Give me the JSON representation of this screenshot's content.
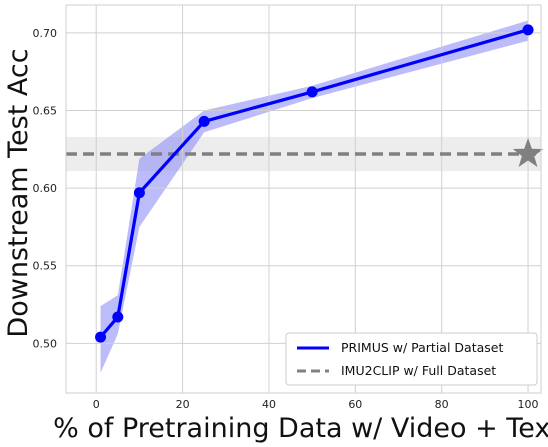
{
  "chart_data": {
    "type": "line",
    "xlabel": "% of Pretraining Data w/ Video + Text",
    "ylabel": "Downstream Test Acc",
    "xlim": [
      -7,
      103
    ],
    "ylim": [
      0.468,
      0.718
    ],
    "xticks": [
      0,
      20,
      40,
      60,
      80,
      100
    ],
    "xtick_labels": [
      "0",
      "20",
      "40",
      "60",
      "80",
      "100"
    ],
    "yticks": [
      0.5,
      0.55,
      0.6,
      0.65,
      0.7
    ],
    "ytick_labels": [
      "0.50",
      "0.55",
      "0.60",
      "0.65",
      "0.70"
    ],
    "grid": true,
    "legend_position": "bottom-right",
    "series": [
      {
        "name": "PRIMUS w/ Partial Dataset",
        "color": "#0000ff",
        "band_color": "#8f8ff7",
        "x": [
          1,
          5,
          10,
          25,
          50,
          100
        ],
        "y": [
          0.504,
          0.517,
          0.597,
          0.643,
          0.662,
          0.702
        ],
        "band_lower": [
          0.481,
          0.506,
          0.575,
          0.636,
          0.658,
          0.695
        ],
        "band_upper": [
          0.524,
          0.531,
          0.619,
          0.65,
          0.666,
          0.708
        ]
      },
      {
        "name": "IMU2CLIP w/ Full Dataset",
        "color": "#808080",
        "style": "dashed",
        "y": 0.622,
        "band": [
          0.611,
          0.633
        ],
        "marker": {
          "x": 100,
          "y": 0.622,
          "shape": "star"
        }
      }
    ]
  }
}
